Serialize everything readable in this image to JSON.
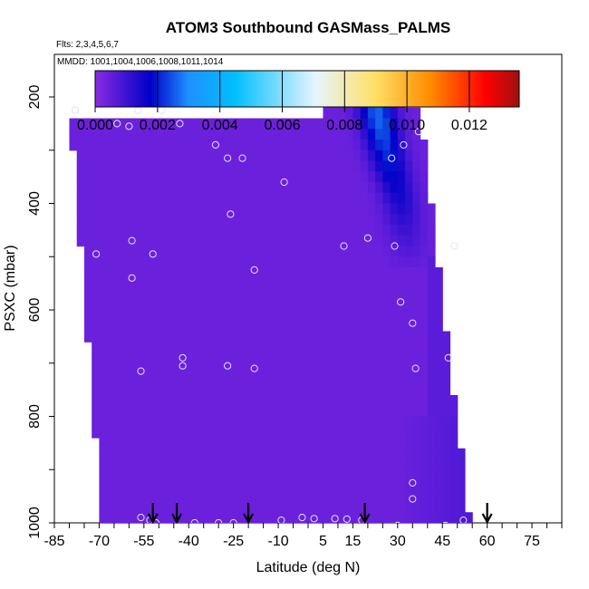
{
  "chart_data": {
    "type": "heatmap",
    "title": "ATOM3 Southbound GASMass_PALMS",
    "subtitle_flights": "Flts: 2,3,4,5,6,7",
    "subtitle_dates": "MMDD: 1001,1004,1006,1008,1011,1014",
    "xlabel": "Latitude (deg N)",
    "ylabel": "PSXC (mbar)",
    "xlim": [
      -85,
      85
    ],
    "ylim": [
      1000,
      120
    ],
    "x_ticks": [
      -85,
      -70,
      -55,
      -40,
      -25,
      -10,
      5,
      15,
      30,
      45,
      60,
      75
    ],
    "x_tick_labels": [
      "-85",
      "-70",
      "-55",
      "-40",
      "-25",
      "-10",
      "5",
      "15",
      "30",
      "45",
      "60",
      "75"
    ],
    "y_ticks": [
      200,
      400,
      600,
      800,
      1000
    ],
    "y_tick_labels": [
      "200",
      "400",
      "600",
      "800",
      "1000"
    ],
    "colorbar": {
      "min": 0.0,
      "max": 0.0136,
      "ticks": [
        0.0,
        0.002,
        0.004,
        0.006,
        0.008,
        0.01,
        0.012
      ],
      "tick_labels": [
        "0.000",
        "0.002",
        "0.004",
        "0.006",
        "0.008",
        "0.010",
        "0.012"
      ],
      "colors": [
        "#8a2be2",
        "#0000c8",
        "#1e90ff",
        "#00bfff",
        "#e6f5ff",
        "#ffe066",
        "#ff8c00",
        "#ff0000",
        "#a01010"
      ]
    },
    "flight_markers_latitude": [
      -52,
      -44,
      -20,
      19,
      60
    ],
    "background_value": 0.0004,
    "enhancement_region": {
      "lat_center": [
        22,
        26,
        31,
        34
      ],
      "pressure": [
        200,
        300,
        400,
        500
      ],
      "peak_value": 0.0022
    },
    "obs_points": [
      [
        -78,
        225
      ],
      [
        -64,
        250
      ],
      [
        -60,
        255
      ],
      [
        -57,
        225
      ],
      [
        -49,
        225
      ],
      [
        -43,
        250
      ],
      [
        -31,
        290
      ],
      [
        -27,
        315
      ],
      [
        -22,
        315
      ],
      [
        -20,
        195
      ],
      [
        -8,
        360
      ],
      [
        -26,
        420
      ],
      [
        12,
        480
      ],
      [
        20,
        465
      ],
      [
        27,
        195
      ],
      [
        28,
        315
      ],
      [
        32,
        290
      ],
      [
        37,
        265
      ],
      [
        29,
        480
      ],
      [
        49,
        480
      ],
      [
        -71,
        495
      ],
      [
        -59,
        470
      ],
      [
        -52,
        495
      ],
      [
        -59,
        540
      ],
      [
        -18,
        525
      ],
      [
        31,
        585
      ],
      [
        35,
        625
      ],
      [
        36,
        710
      ],
      [
        47,
        690
      ],
      [
        -42,
        690
      ],
      [
        -42,
        705
      ],
      [
        -27,
        705
      ],
      [
        -18,
        710
      ],
      [
        -56,
        715
      ],
      [
        35,
        925
      ],
      [
        35,
        955
      ],
      [
        -56,
        990
      ],
      [
        -53,
        995
      ],
      [
        -51,
        1000
      ],
      [
        -38,
        1000
      ],
      [
        -30,
        1000
      ],
      [
        -25,
        1000
      ],
      [
        -9,
        995
      ],
      [
        -2,
        990
      ],
      [
        2,
        992
      ],
      [
        9,
        992
      ],
      [
        13,
        993
      ],
      [
        18,
        995
      ],
      [
        30,
        1005
      ],
      [
        35,
        1008
      ],
      [
        41,
        1010
      ],
      [
        46,
        1005
      ],
      [
        52,
        995
      ]
    ]
  }
}
